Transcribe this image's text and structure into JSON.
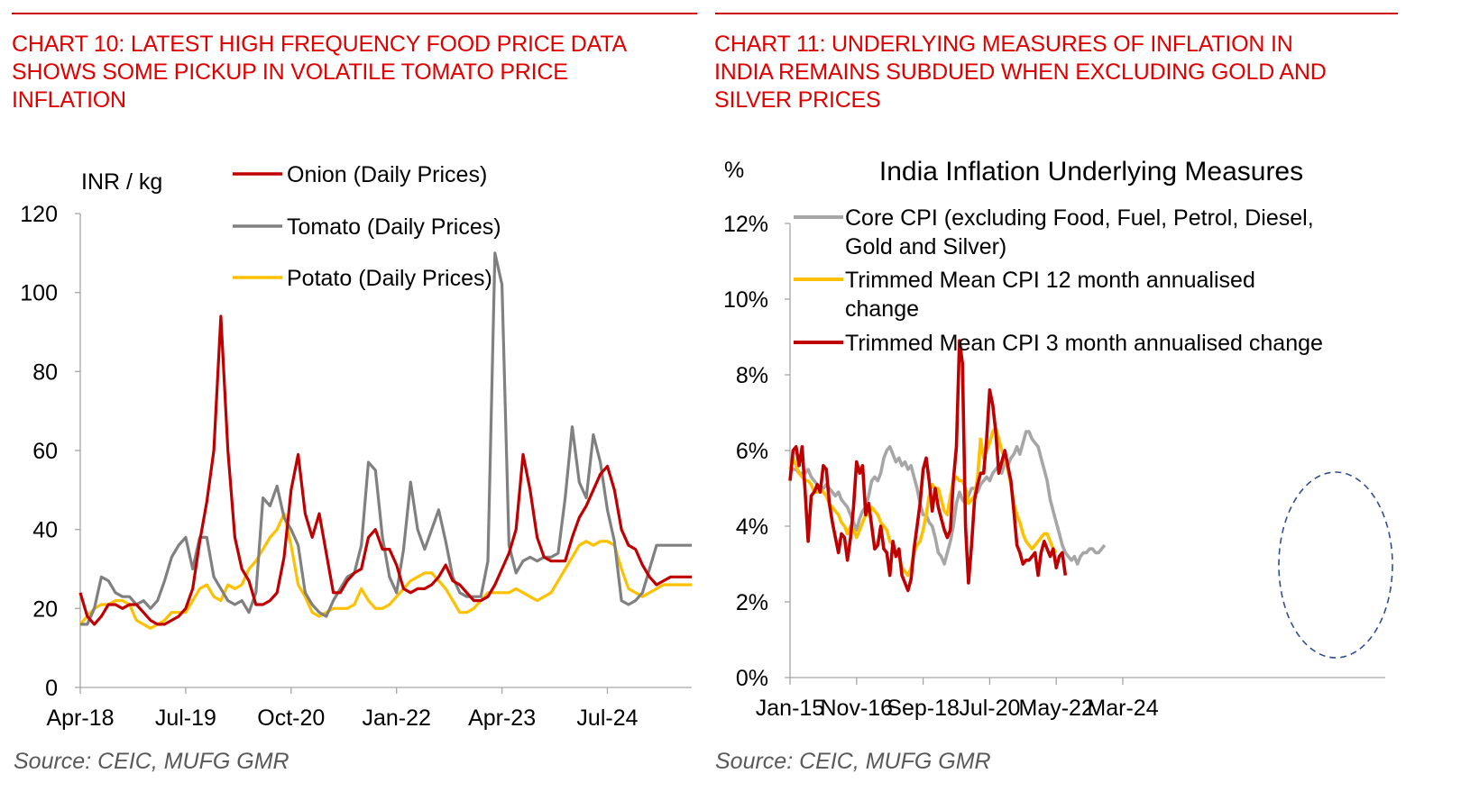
{
  "left_panel": {
    "title": "CHART 10: LATEST HIGH FREQUENCY FOOD PRICE DATA SHOWS SOME PICKUP IN VOLATILE TOMATO PRICE INFLATION",
    "title_lines": [
      "CHART 10: LATEST HIGH FREQUENCY FOOD PRICE DATA",
      "SHOWS SOME PICKUP IN VOLATILE TOMATO PRICE",
      "INFLATION"
    ],
    "source": "Source: CEIC, MUFG GMR"
  },
  "right_panel": {
    "title": "CHART 11: UNDERLYING MEASURES OF INFLATION IN INDIA REMAINS SUBDUED WHEN EXCLUDING GOLD AND SILVER PRICES",
    "title_lines": [
      "CHART 11: UNDERLYING MEASURES OF INFLATION IN",
      "INDIA REMAINS SUBDUED WHEN EXCLUDING GOLD AND",
      "SILVER PRICES"
    ],
    "source": "Source: CEIC, MUFG GMR"
  },
  "colors": {
    "title_red": "#e00000",
    "onion": "#c00000",
    "tomato": "#808080",
    "potato": "#ffc000",
    "core_cpi": "#a6a6a6",
    "trimmed_12m": "#ffc000",
    "trimmed_3m": "#c00000",
    "annotation_ellipse": "#2f4f8f"
  },
  "chart_data": [
    {
      "type": "line",
      "title": "",
      "ylabel": "INR / kg",
      "xlabel": "",
      "ylim": [
        0,
        120
      ],
      "yticks": [
        0,
        20,
        40,
        60,
        80,
        100,
        120
      ],
      "ytick_labels": [
        "0",
        "20",
        "40",
        "60",
        "80",
        "100",
        "120"
      ],
      "x_unit": "months since Apr-18",
      "xlim": [
        0,
        87
      ],
      "xticks": [
        0,
        15,
        30,
        45,
        60,
        75
      ],
      "xtick_labels": [
        "Apr-18",
        "Jul-19",
        "Oct-20",
        "Jan-22",
        "Apr-23",
        "Jul-24"
      ],
      "legend": [
        "Onion (Daily Prices)",
        "Tomato (Daily Prices)",
        "Potato (Daily Prices)"
      ],
      "legend_position": "top",
      "grid": false,
      "series": [
        {
          "name": "Onion (Daily Prices)",
          "x": [
            0,
            1,
            2,
            3,
            4,
            5,
            6,
            7,
            8,
            9,
            10,
            11,
            12,
            13,
            14,
            15,
            16,
            17,
            18,
            19,
            20,
            21,
            22,
            23,
            24,
            25,
            26,
            27,
            28,
            29,
            30,
            31,
            32,
            33,
            34,
            35,
            36,
            37,
            38,
            39,
            40,
            41,
            42,
            43,
            44,
            45,
            46,
            47,
            48,
            49,
            50,
            51,
            52,
            53,
            54,
            55,
            56,
            57,
            58,
            59,
            60,
            61,
            62,
            63,
            64,
            65,
            66,
            67,
            68,
            69,
            70,
            71,
            72,
            73,
            74,
            75,
            76,
            77,
            78,
            79,
            80,
            81,
            82,
            83,
            84,
            85,
            86,
            87
          ],
          "values": [
            24,
            18,
            16,
            18,
            21,
            21,
            20,
            21,
            21,
            19,
            17,
            16,
            16,
            17,
            18,
            20,
            25,
            37,
            47,
            60,
            94,
            60,
            38,
            30,
            27,
            21,
            21,
            22,
            24,
            33,
            50,
            59,
            44,
            38,
            44,
            34,
            24,
            24,
            27,
            29,
            30,
            38,
            40,
            35,
            35,
            31,
            25,
            24,
            25,
            25,
            26,
            28,
            31,
            27,
            26,
            24,
            22,
            22,
            23,
            26,
            30,
            34,
            40,
            59,
            50,
            38,
            33,
            32,
            32,
            32,
            38,
            43,
            46,
            50,
            54,
            56,
            50,
            40,
            36,
            35,
            31,
            28,
            26,
            27,
            28,
            28,
            28,
            28
          ]
        },
        {
          "name": "Tomato (Daily Prices)",
          "x": [
            0,
            1,
            2,
            3,
            4,
            5,
            6,
            7,
            8,
            9,
            10,
            11,
            12,
            13,
            14,
            15,
            16,
            17,
            18,
            19,
            20,
            21,
            22,
            23,
            24,
            25,
            26,
            27,
            28,
            29,
            30,
            31,
            32,
            33,
            34,
            35,
            36,
            37,
            38,
            39,
            40,
            41,
            42,
            43,
            44,
            45,
            46,
            47,
            48,
            49,
            50,
            51,
            52,
            53,
            54,
            55,
            56,
            57,
            58,
            59,
            60,
            61,
            62,
            63,
            64,
            65,
            66,
            67,
            68,
            69,
            70,
            71,
            72,
            73,
            74,
            75,
            76,
            77,
            78,
            79,
            80,
            81,
            82,
            83,
            84,
            85,
            86,
            87
          ],
          "values": [
            16,
            16,
            20,
            28,
            27,
            24,
            23,
            23,
            21,
            22,
            20,
            22,
            27,
            33,
            36,
            38,
            30,
            38,
            38,
            28,
            25,
            22,
            21,
            22,
            19,
            24,
            48,
            46,
            51,
            43,
            40,
            36,
            24,
            21,
            19,
            18,
            22,
            25,
            28,
            29,
            36,
            57,
            55,
            38,
            28,
            24,
            35,
            52,
            40,
            35,
            40,
            45,
            37,
            28,
            24,
            23,
            23,
            23,
            32,
            110,
            102,
            36,
            29,
            32,
            33,
            32,
            33,
            33,
            34,
            48,
            66,
            52,
            48,
            64,
            57,
            45,
            37,
            22,
            21,
            22,
            24,
            30,
            36,
            36,
            36,
            36,
            36,
            36
          ]
        },
        {
          "name": "Potato (Daily Prices)",
          "x": [
            0,
            1,
            2,
            3,
            4,
            5,
            6,
            7,
            8,
            9,
            10,
            11,
            12,
            13,
            14,
            15,
            16,
            17,
            18,
            19,
            20,
            21,
            22,
            23,
            24,
            25,
            26,
            27,
            28,
            29,
            30,
            31,
            32,
            33,
            34,
            35,
            36,
            37,
            38,
            39,
            40,
            41,
            42,
            43,
            44,
            45,
            46,
            47,
            48,
            49,
            50,
            51,
            52,
            53,
            54,
            55,
            56,
            57,
            58,
            59,
            60,
            61,
            62,
            63,
            64,
            65,
            66,
            67,
            68,
            69,
            70,
            71,
            72,
            73,
            74,
            75,
            76,
            77,
            78,
            79,
            80,
            81,
            82,
            83,
            84,
            85,
            86,
            87
          ],
          "values": [
            16,
            18,
            20,
            21,
            21,
            22,
            22,
            21,
            17,
            16,
            15,
            16,
            17,
            19,
            19,
            19,
            22,
            25,
            26,
            23,
            22,
            26,
            25,
            26,
            30,
            32,
            35,
            38,
            40,
            44,
            36,
            26,
            23,
            19,
            18,
            19,
            20,
            20,
            20,
            21,
            25,
            22,
            20,
            20,
            21,
            23,
            25,
            27,
            28,
            29,
            29,
            27,
            25,
            22,
            19,
            19,
            20,
            22,
            24,
            24,
            24,
            24,
            25,
            24,
            23,
            22,
            23,
            24,
            27,
            30,
            33,
            36,
            37,
            36,
            37,
            37,
            36,
            30,
            25,
            24,
            23,
            24,
            25,
            26,
            26,
            26,
            26,
            26
          ]
        }
      ]
    },
    {
      "type": "line",
      "title": "India Inflation Underlying Measures",
      "ylabel": "%",
      "xlabel": "",
      "ylim": [
        0,
        12
      ],
      "yticks": [
        0,
        2,
        4,
        6,
        8,
        10,
        12
      ],
      "ytick_labels": [
        "0%",
        "2%",
        "4%",
        "6%",
        "8%",
        "10%",
        "12%"
      ],
      "x_unit": "months since Jan-15",
      "xlim": [
        0,
        120
      ],
      "xticks": [
        0,
        22,
        44,
        66,
        88,
        110
      ],
      "xtick_labels": [
        "Jan-15",
        "Nov-16",
        "Sep-18",
        "Jul-20",
        "May-22",
        "Mar-24"
      ],
      "legend": [
        "Core CPI (excluding Food, Fuel, Petrol, Diesel, Gold and Silver)",
        "Trimmed Mean CPI 12 month annualised change",
        "Trimmed Mean CPI 3 month annualised change"
      ],
      "legend_position": "top",
      "grid": false,
      "annotation": "dashed ellipse highlighting Mar-24 onward",
      "series": [
        {
          "name": "Core CPI (excluding Food, Fuel, Petrol, Diesel, Gold and Silver)",
          "values": [
            5.6,
            5.5,
            5.5,
            5.4,
            5.4,
            5.4,
            5.5,
            5.3,
            5.2,
            5.1,
            5.0,
            5.0,
            5.1,
            5.0,
            4.9,
            4.8,
            4.9,
            4.7,
            4.6,
            4.5,
            4.3,
            4.1,
            3.9,
            4.2,
            4.4,
            4.5,
            4.8,
            5.2,
            5.3,
            5.2,
            5.4,
            5.8,
            6.0,
            6.1,
            5.9,
            5.7,
            5.8,
            5.6,
            5.7,
            5.5,
            5.6,
            5.3,
            5.0,
            4.6,
            4.3,
            4.3,
            4.1,
            4.0,
            3.7,
            3.3,
            3.2,
            3.0,
            3.3,
            3.6,
            4.0,
            4.6,
            4.9,
            4.7,
            4.6,
            4.8,
            5.0,
            5.0,
            4.9,
            5.1,
            5.2,
            5.3,
            5.2,
            5.4,
            5.5,
            5.6,
            5.4,
            5.7,
            5.6,
            5.8,
            5.9,
            6.1,
            5.9,
            6.2,
            6.5,
            6.5,
            6.3,
            6.2,
            6.1,
            5.8,
            5.5,
            5.2,
            4.7,
            4.4,
            4.1,
            3.8,
            3.5,
            3.3,
            3.2,
            3.1,
            3.2,
            3.0,
            3.2,
            3.3,
            3.3,
            3.4,
            3.4,
            3.3,
            3.3,
            3.4,
            3.5
          ]
        },
        {
          "name": "Trimmed Mean CPI 12 month annualised change",
          "values": [
            5.5,
            5.8,
            5.6,
            5.4,
            5.3,
            5.2,
            5.2,
            5.1,
            4.9,
            4.9,
            5.0,
            4.9,
            4.8,
            4.6,
            4.5,
            4.4,
            4.3,
            4.1,
            4.0,
            3.8,
            4.0,
            3.9,
            3.7,
            3.9,
            4.1,
            4.3,
            4.3,
            4.5,
            4.4,
            4.3,
            4.1,
            4.0,
            3.9,
            3.6,
            3.5,
            3.3,
            3.2,
            2.9,
            2.8,
            2.7,
            2.9,
            3.3,
            3.5,
            3.6,
            3.9,
            4.3,
            4.8,
            5.1,
            5.0,
            5.0,
            4.7,
            4.4,
            4.3,
            4.8,
            5.2,
            5.3,
            5.2,
            5.2,
            5.0,
            4.6,
            4.7,
            4.8,
            5.3,
            6.3,
            5.8,
            6.0,
            6.2,
            6.5,
            6.6,
            6.3,
            6.0,
            5.8,
            5.5,
            5.1,
            4.6,
            4.3,
            4.1,
            3.8,
            3.6,
            3.5,
            3.4,
            3.5,
            3.6,
            3.7,
            3.8,
            3.8,
            3.6,
            3.4,
            3.3
          ]
        },
        {
          "name": "Trimmed Mean CPI 3 month annualised change",
          "values": [
            5.2,
            6.0,
            6.1,
            5.6,
            6.1,
            4.9,
            3.6,
            4.8,
            4.9,
            5.1,
            4.9,
            5.6,
            5.5,
            4.6,
            4.1,
            3.7,
            3.3,
            3.8,
            3.7,
            3.1,
            3.7,
            4.5,
            5.7,
            5.4,
            5.6,
            4.3,
            4.6,
            4.0,
            3.4,
            3.5,
            4.0,
            3.4,
            3.3,
            2.7,
            3.6,
            3.2,
            3.4,
            2.7,
            2.5,
            2.3,
            2.6,
            3.4,
            4.0,
            4.6,
            5.5,
            5.8,
            5.2,
            4.4,
            5.0,
            4.5,
            4.2,
            3.9,
            3.7,
            3.9,
            5.2,
            6.1,
            8.9,
            8.3,
            4.0,
            2.5,
            3.5,
            4.7,
            5.1,
            5.4,
            5.4,
            6.3,
            7.6,
            7.2,
            6.5,
            5.4,
            5.7,
            6.0,
            5.6,
            5.2,
            4.4,
            3.5,
            3.3,
            3.0,
            3.1,
            3.1,
            3.2,
            3.3,
            2.7,
            3.3,
            3.6,
            3.4,
            3.2,
            3.4,
            2.9,
            3.2,
            3.3,
            2.7
          ]
        }
      ]
    }
  ]
}
